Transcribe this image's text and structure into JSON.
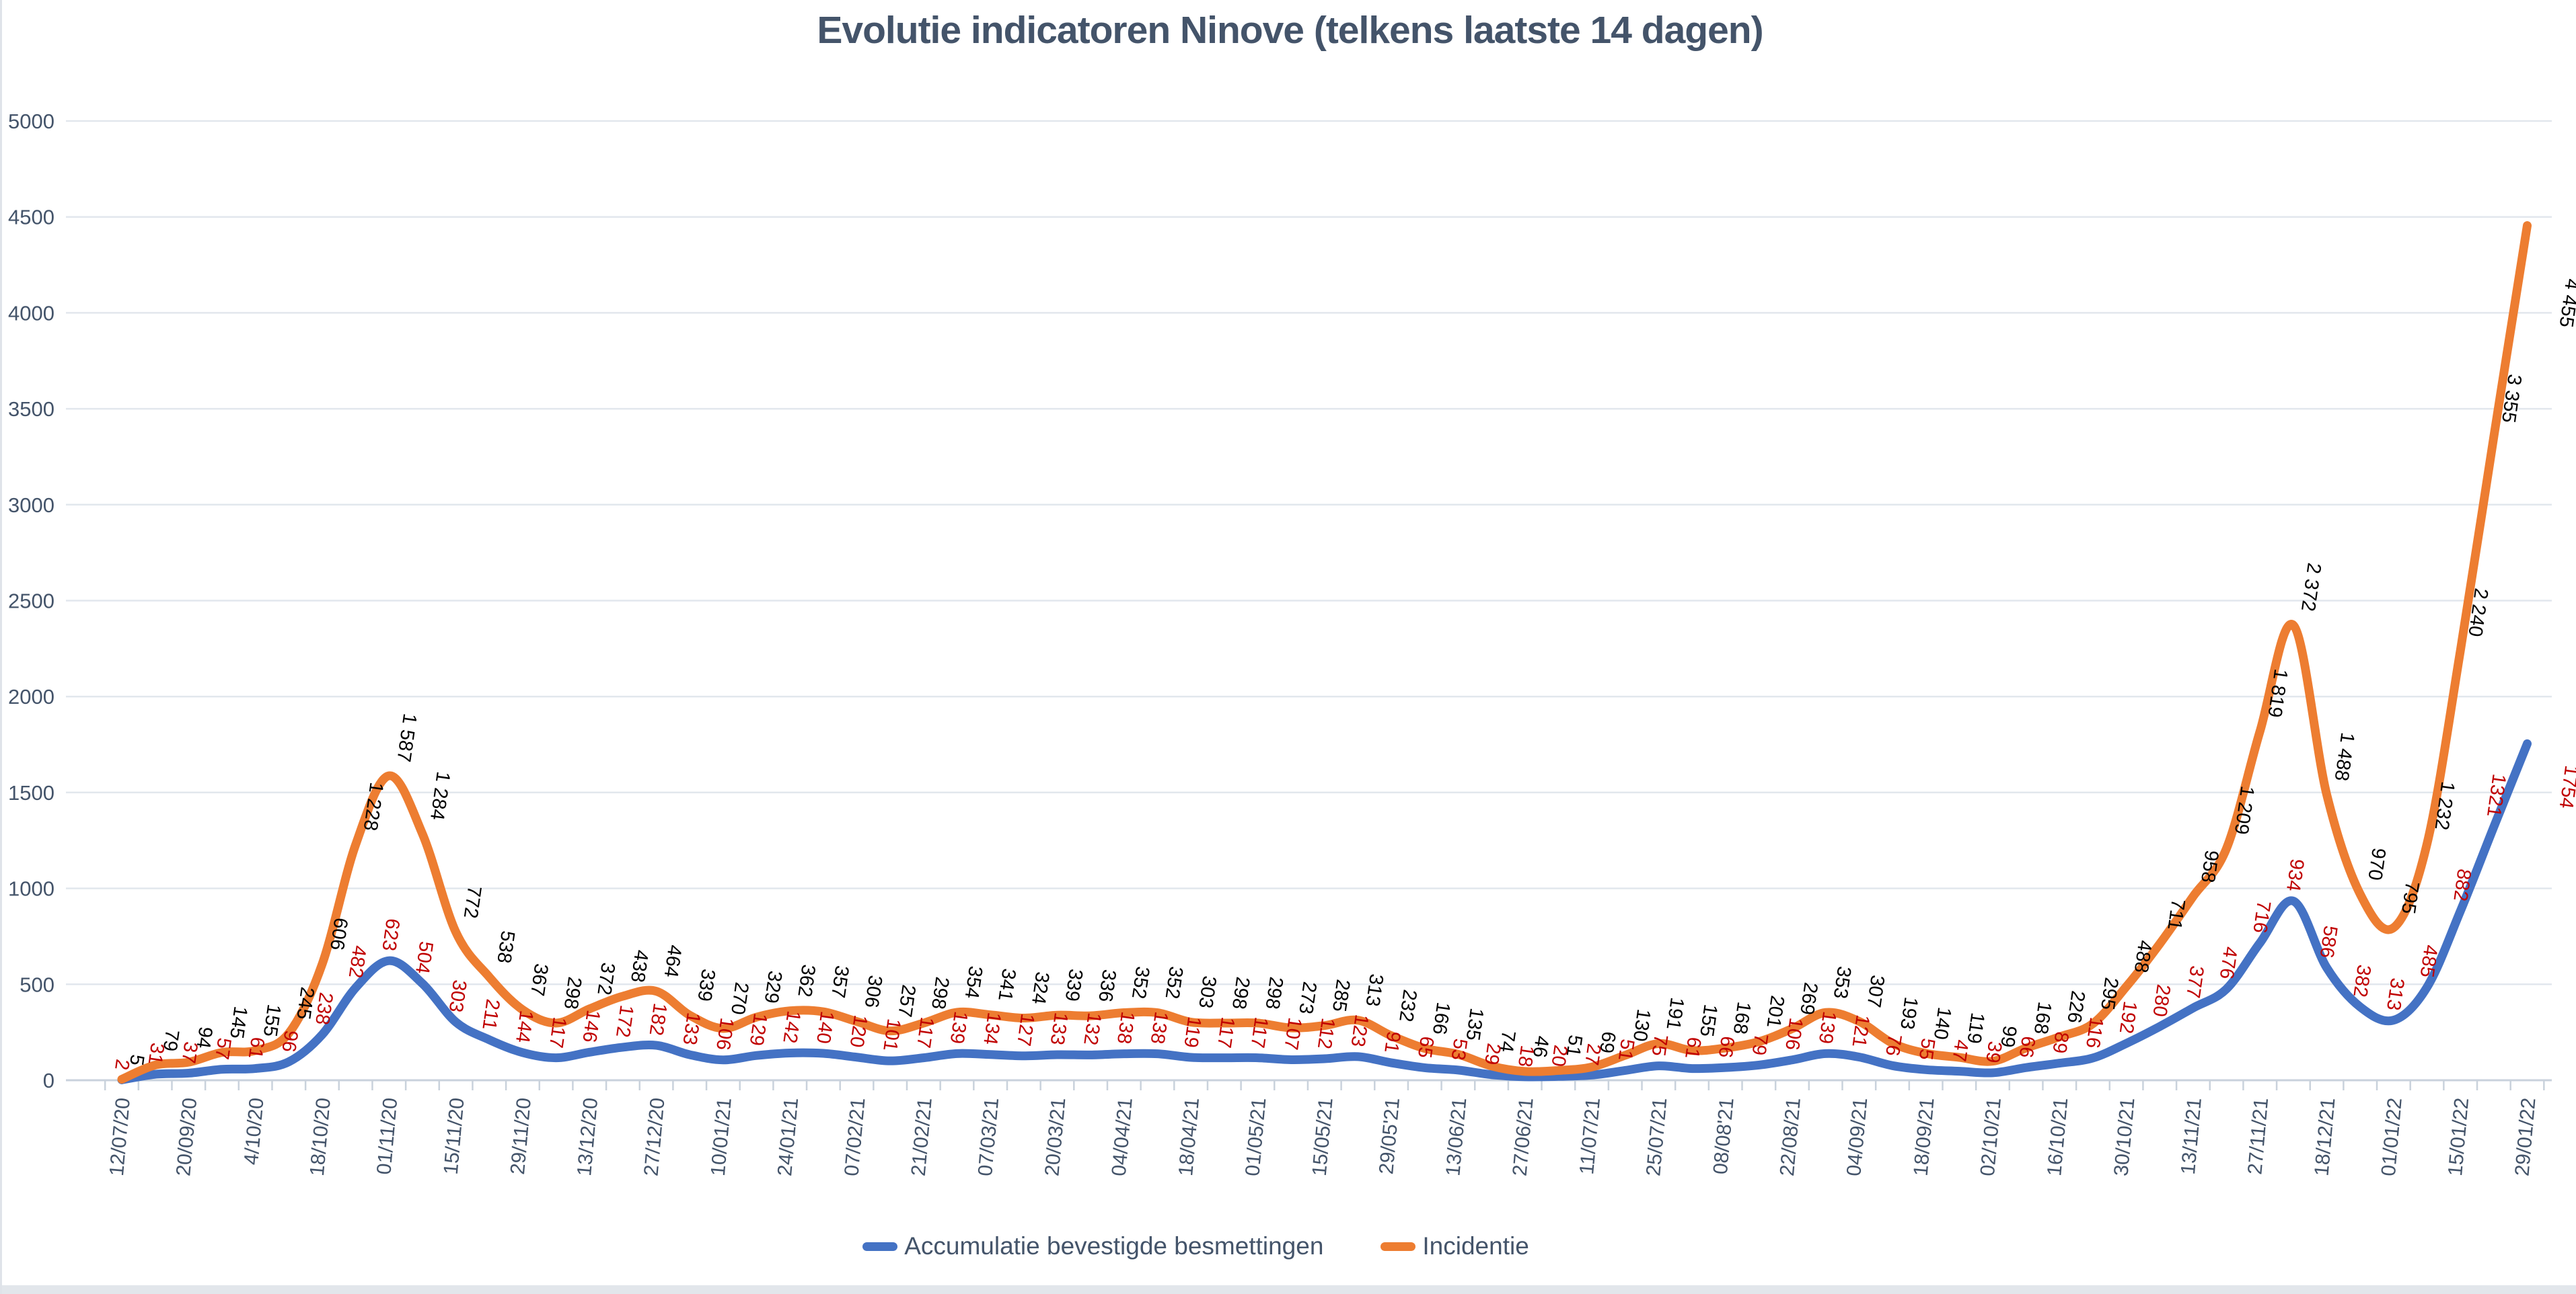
{
  "title": "Evolutie indicatoren Ninove (telkens laatste 14 dagen)",
  "legend": [
    {
      "label": "Accumulatie bevestigde besmettingen",
      "color": "#4472C4"
    },
    {
      "label": "Incidentie",
      "color": "#ED7D31"
    }
  ],
  "y_axis": {
    "labels": [
      "0",
      "500",
      "1000",
      "1500",
      "2000",
      "2500",
      "3000",
      "3500",
      "4000",
      "4500",
      "5000"
    ]
  },
  "colors": {
    "accumulatie_line": "#4472C4",
    "incidentie_line": "#ED7D31",
    "accumulatie_data_label": "#C00000",
    "incidentie_data_label": "#000000",
    "axis_text": "#44546A",
    "gridline": "#e2e7ed",
    "axis_line": "#c9d2dc",
    "title_text": "#44546A"
  },
  "chart_data": {
    "type": "line",
    "title": "Evolutie indicatoren Ninove (telkens laatste 14 dagen)",
    "xlabel": "",
    "ylabel": "",
    "ylim": [
      0,
      5000
    ],
    "ytick_step": 500,
    "grid": true,
    "legend_position": "bottom",
    "smoothed_lines": true,
    "x_tick_labels_every_2nd_point": true,
    "x_tick_labels": [
      "12/07/20",
      "20/09/20",
      "4/10/20",
      "18/10/20",
      "01/11/20",
      "15/11/20",
      "29/11/20",
      "13/12/20",
      "27/12/20",
      "10/01/21",
      "24/01/21",
      "07/02/21",
      "21/02/21",
      "07/03/21",
      "20/03/21",
      "04/04/21",
      "18/04/21",
      "01/05/21",
      "15/05/21",
      "29/05'21",
      "13/06/21",
      "27/06/21",
      "11/07/21",
      "25/07/21",
      "08/08'21",
      "22/08/21",
      "04/09/21",
      "18/09/21",
      "02/10/21",
      "16/10/21",
      "30/10/21",
      "13/11/21",
      "27/11/21",
      "18/12/21",
      "01/01/22",
      "15/01/22",
      "29/01/22"
    ],
    "series": [
      {
        "name": "Accumulatie bevestigde besmettingen",
        "color": "#4472C4",
        "data_label_color": "#C00000",
        "values": [
          2,
          31,
          37,
          57,
          61,
          96,
          238,
          482,
          623,
          504,
          303,
          211,
          144,
          117,
          146,
          172,
          182,
          133,
          106,
          129,
          142,
          140,
          120,
          101,
          117,
          139,
          134,
          127,
          133,
          132,
          138,
          138,
          119,
          117,
          117,
          107,
          112,
          123,
          91,
          65,
          53,
          29,
          18,
          20,
          27,
          51,
          75,
          61,
          66,
          79,
          106,
          139,
          121,
          76,
          55,
          47,
          39,
          66,
          89,
          116,
          192,
          280,
          377,
          476,
          716,
          934,
          586,
          382,
          313,
          485,
          882,
          1321,
          1754
        ],
        "data_labels": [
          "2",
          "31",
          "37",
          "57",
          "61",
          "96",
          "238",
          "482",
          "623",
          "504",
          "303",
          "211",
          "144",
          "117",
          "146",
          "172",
          "182",
          "133",
          "106",
          "129",
          "142",
          "140",
          "120",
          "101",
          "117",
          "139",
          "134",
          "127",
          "133",
          "132",
          "138",
          "138",
          "119",
          "117",
          "117",
          "107",
          "112",
          "123",
          "91",
          "65",
          "53",
          "29",
          "18",
          "20",
          "27",
          "51",
          "75",
          "61",
          "66",
          "79",
          "106",
          "139",
          "121",
          "76",
          "55",
          "47",
          "39",
          "66",
          "89",
          "116",
          "192",
          "280",
          "377",
          "476",
          "716",
          "934",
          "586",
          "382",
          "313",
          "485",
          "882",
          "1321",
          "1754"
        ]
      },
      {
        "name": "Incidentie",
        "color": "#ED7D31",
        "data_label_color": "#000000",
        "values": [
          5,
          79,
          94,
          145,
          155,
          245,
          606,
          1228,
          1587,
          1284,
          772,
          538,
          367,
          298,
          372,
          438,
          464,
          339,
          270,
          329,
          362,
          357,
          306,
          257,
          298,
          354,
          341,
          324,
          339,
          336,
          352,
          352,
          303,
          298,
          298,
          273,
          285,
          313,
          232,
          166,
          135,
          74,
          46,
          51,
          69,
          130,
          191,
          155,
          168,
          201,
          269,
          353,
          307,
          193,
          140,
          119,
          99,
          168,
          226,
          295,
          488,
          711,
          958,
          1209,
          1819,
          2372,
          1488,
          970,
          795,
          1232,
          2240,
          3355,
          4455
        ],
        "data_labels": [
          "5",
          "79",
          "94",
          "145",
          "155",
          "245",
          "606",
          "1 228",
          "1 587",
          "1 284",
          "772",
          "538",
          "367",
          "298",
          "372",
          "438",
          "464",
          "339",
          "270",
          "329",
          "362",
          "357",
          "306",
          "257",
          "298",
          "354",
          "341",
          "324",
          "339",
          "336",
          "352",
          "352",
          "303",
          "298",
          "298",
          "273",
          "285",
          "313",
          "232",
          "166",
          "135",
          "74",
          "46",
          "51",
          "69",
          "130",
          "191",
          "155",
          "168",
          "201",
          "269",
          "353",
          "307",
          "193",
          "140",
          "119",
          "99",
          "168",
          "226",
          "295",
          "488",
          "711",
          "958",
          "1 209",
          "1 819",
          "2 372",
          "1 488",
          "970",
          "795",
          "1 232",
          "2 240",
          "3 355",
          "4 455"
        ]
      }
    ]
  }
}
